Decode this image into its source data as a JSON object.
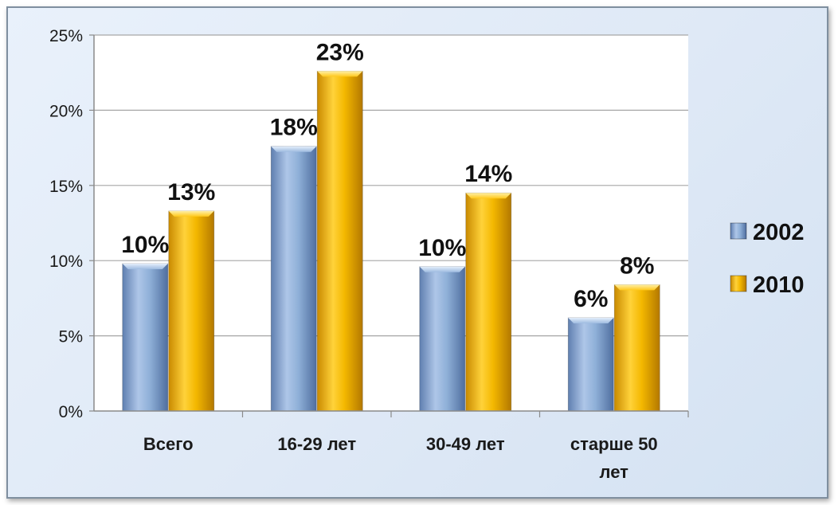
{
  "chart_data": {
    "type": "bar",
    "categories": [
      "Всего",
      "16-29 лет",
      "30-49 лет",
      "старше 50 лет"
    ],
    "series": [
      {
        "name": "2002",
        "values": [
          10,
          18,
          10,
          6
        ],
        "data_labels": [
          "10%",
          "18%",
          "10%",
          "6%"
        ],
        "color": "#8fb0d8"
      },
      {
        "name": "2010",
        "values": [
          13,
          23,
          14,
          8
        ],
        "data_labels": [
          "13%",
          "23%",
          "14%",
          "8%"
        ],
        "color": "#f4b800"
      }
    ],
    "bar_heights": [
      [
        9.8,
        17.6,
        9.6,
        6.2
      ],
      [
        13.3,
        22.6,
        14.5,
        8.4
      ]
    ],
    "ylim": [
      0,
      25
    ],
    "yticks": [
      0,
      5,
      10,
      15,
      20,
      25
    ],
    "ytick_labels": [
      "0%",
      "5%",
      "10%",
      "15%",
      "20%",
      "25%"
    ],
    "grid": true,
    "legend_position": "right",
    "plot_background": "#ffffff",
    "frame_background": "#dfe9f6"
  }
}
